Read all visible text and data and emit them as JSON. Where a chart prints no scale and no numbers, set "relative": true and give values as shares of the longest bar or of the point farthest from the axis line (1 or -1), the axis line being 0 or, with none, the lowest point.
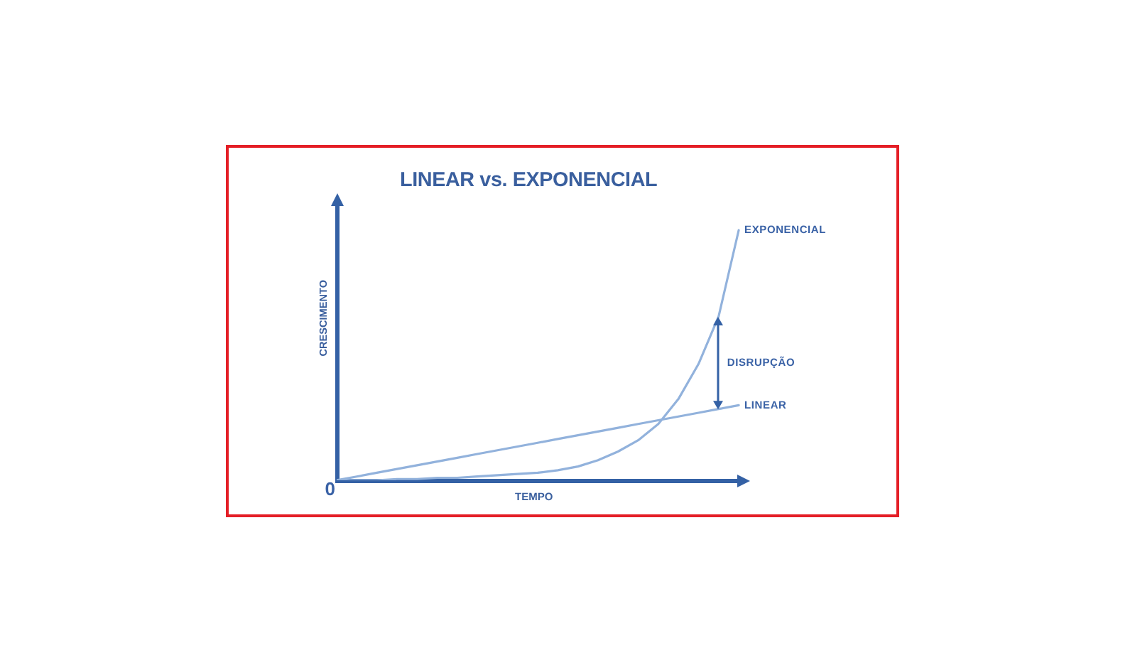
{
  "chart_data": {
    "type": "line",
    "title": "LINEAR vs. EXPONENCIAL",
    "xlabel": "TEMPO",
    "ylabel": "CRESCIMENTO",
    "relative": true,
    "marker": "none",
    "categories": [
      null,
      null,
      null,
      null,
      null,
      null,
      null,
      null,
      null,
      null,
      null,
      null,
      null,
      null,
      null,
      null,
      null,
      null,
      null,
      null,
      null
    ],
    "series": [
      {
        "name": "EXPONENCIAL",
        "color": "#92b2dc",
        "values": [
          0,
          0,
          0,
          0.005,
          0.005,
          0.01,
          0.01,
          0.015,
          0.02,
          0.025,
          0.03,
          0.04,
          0.055,
          0.08,
          0.115,
          0.16,
          0.225,
          0.325,
          0.465,
          0.655,
          1
        ]
      },
      {
        "name": "LINEAR",
        "color": "#92b2dc",
        "values": [
          0,
          0.015,
          0.03,
          0.045,
          0.06,
          0.075,
          0.09,
          0.105,
          0.12,
          0.135,
          0.15,
          0.165,
          0.18,
          0.195,
          0.21,
          0.225,
          0.24,
          0.255,
          0.27,
          0.285,
          0.3
        ]
      }
    ],
    "annotations": [
      "0",
      "DISRUPÇÃO"
    ]
  }
}
